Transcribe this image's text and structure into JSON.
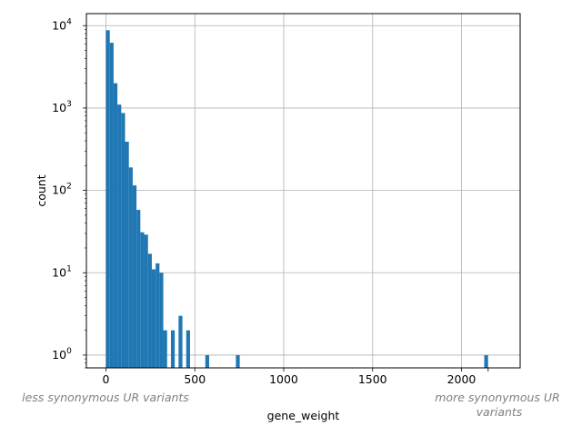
{
  "chart_data": {
    "type": "bar",
    "xlabel": "gene_weight",
    "ylabel": "count",
    "y_scale": "log",
    "grid": true,
    "xlim": [
      -110,
      2330
    ],
    "ylim": [
      0.7,
      14000
    ],
    "x_ticks": [
      0,
      500,
      1000,
      1500,
      2000
    ],
    "x_tick_labels": [
      "0",
      "500",
      "1000",
      "1500",
      "2000"
    ],
    "y_ticks": [
      1,
      10,
      100,
      1000,
      10000
    ],
    "bin_width": 21.5,
    "bars": [
      {
        "x": 0,
        "count": 8800
      },
      {
        "x": 21.5,
        "count": 6200
      },
      {
        "x": 43,
        "count": 2000
      },
      {
        "x": 64.5,
        "count": 1100
      },
      {
        "x": 86,
        "count": 870
      },
      {
        "x": 107.5,
        "count": 390
      },
      {
        "x": 129,
        "count": 190
      },
      {
        "x": 150.5,
        "count": 115
      },
      {
        "x": 172,
        "count": 58
      },
      {
        "x": 193.5,
        "count": 31
      },
      {
        "x": 215,
        "count": 29
      },
      {
        "x": 236.5,
        "count": 17
      },
      {
        "x": 258,
        "count": 11
      },
      {
        "x": 279.5,
        "count": 13
      },
      {
        "x": 301,
        "count": 10
      },
      {
        "x": 322.5,
        "count": 2
      },
      {
        "x": 365.5,
        "count": 2
      },
      {
        "x": 408.5,
        "count": 3
      },
      {
        "x": 451.5,
        "count": 2
      },
      {
        "x": 559,
        "count": 1
      },
      {
        "x": 731,
        "count": 1
      },
      {
        "x": 2128,
        "count": 1
      }
    ],
    "annotations": {
      "left": [
        "less synonymous UR variants"
      ],
      "right": [
        "more synonymous UR",
        "variants"
      ]
    },
    "colors": {
      "bar": "#1f77b4",
      "grid": "#b0b0b0",
      "note": "#808080"
    }
  }
}
